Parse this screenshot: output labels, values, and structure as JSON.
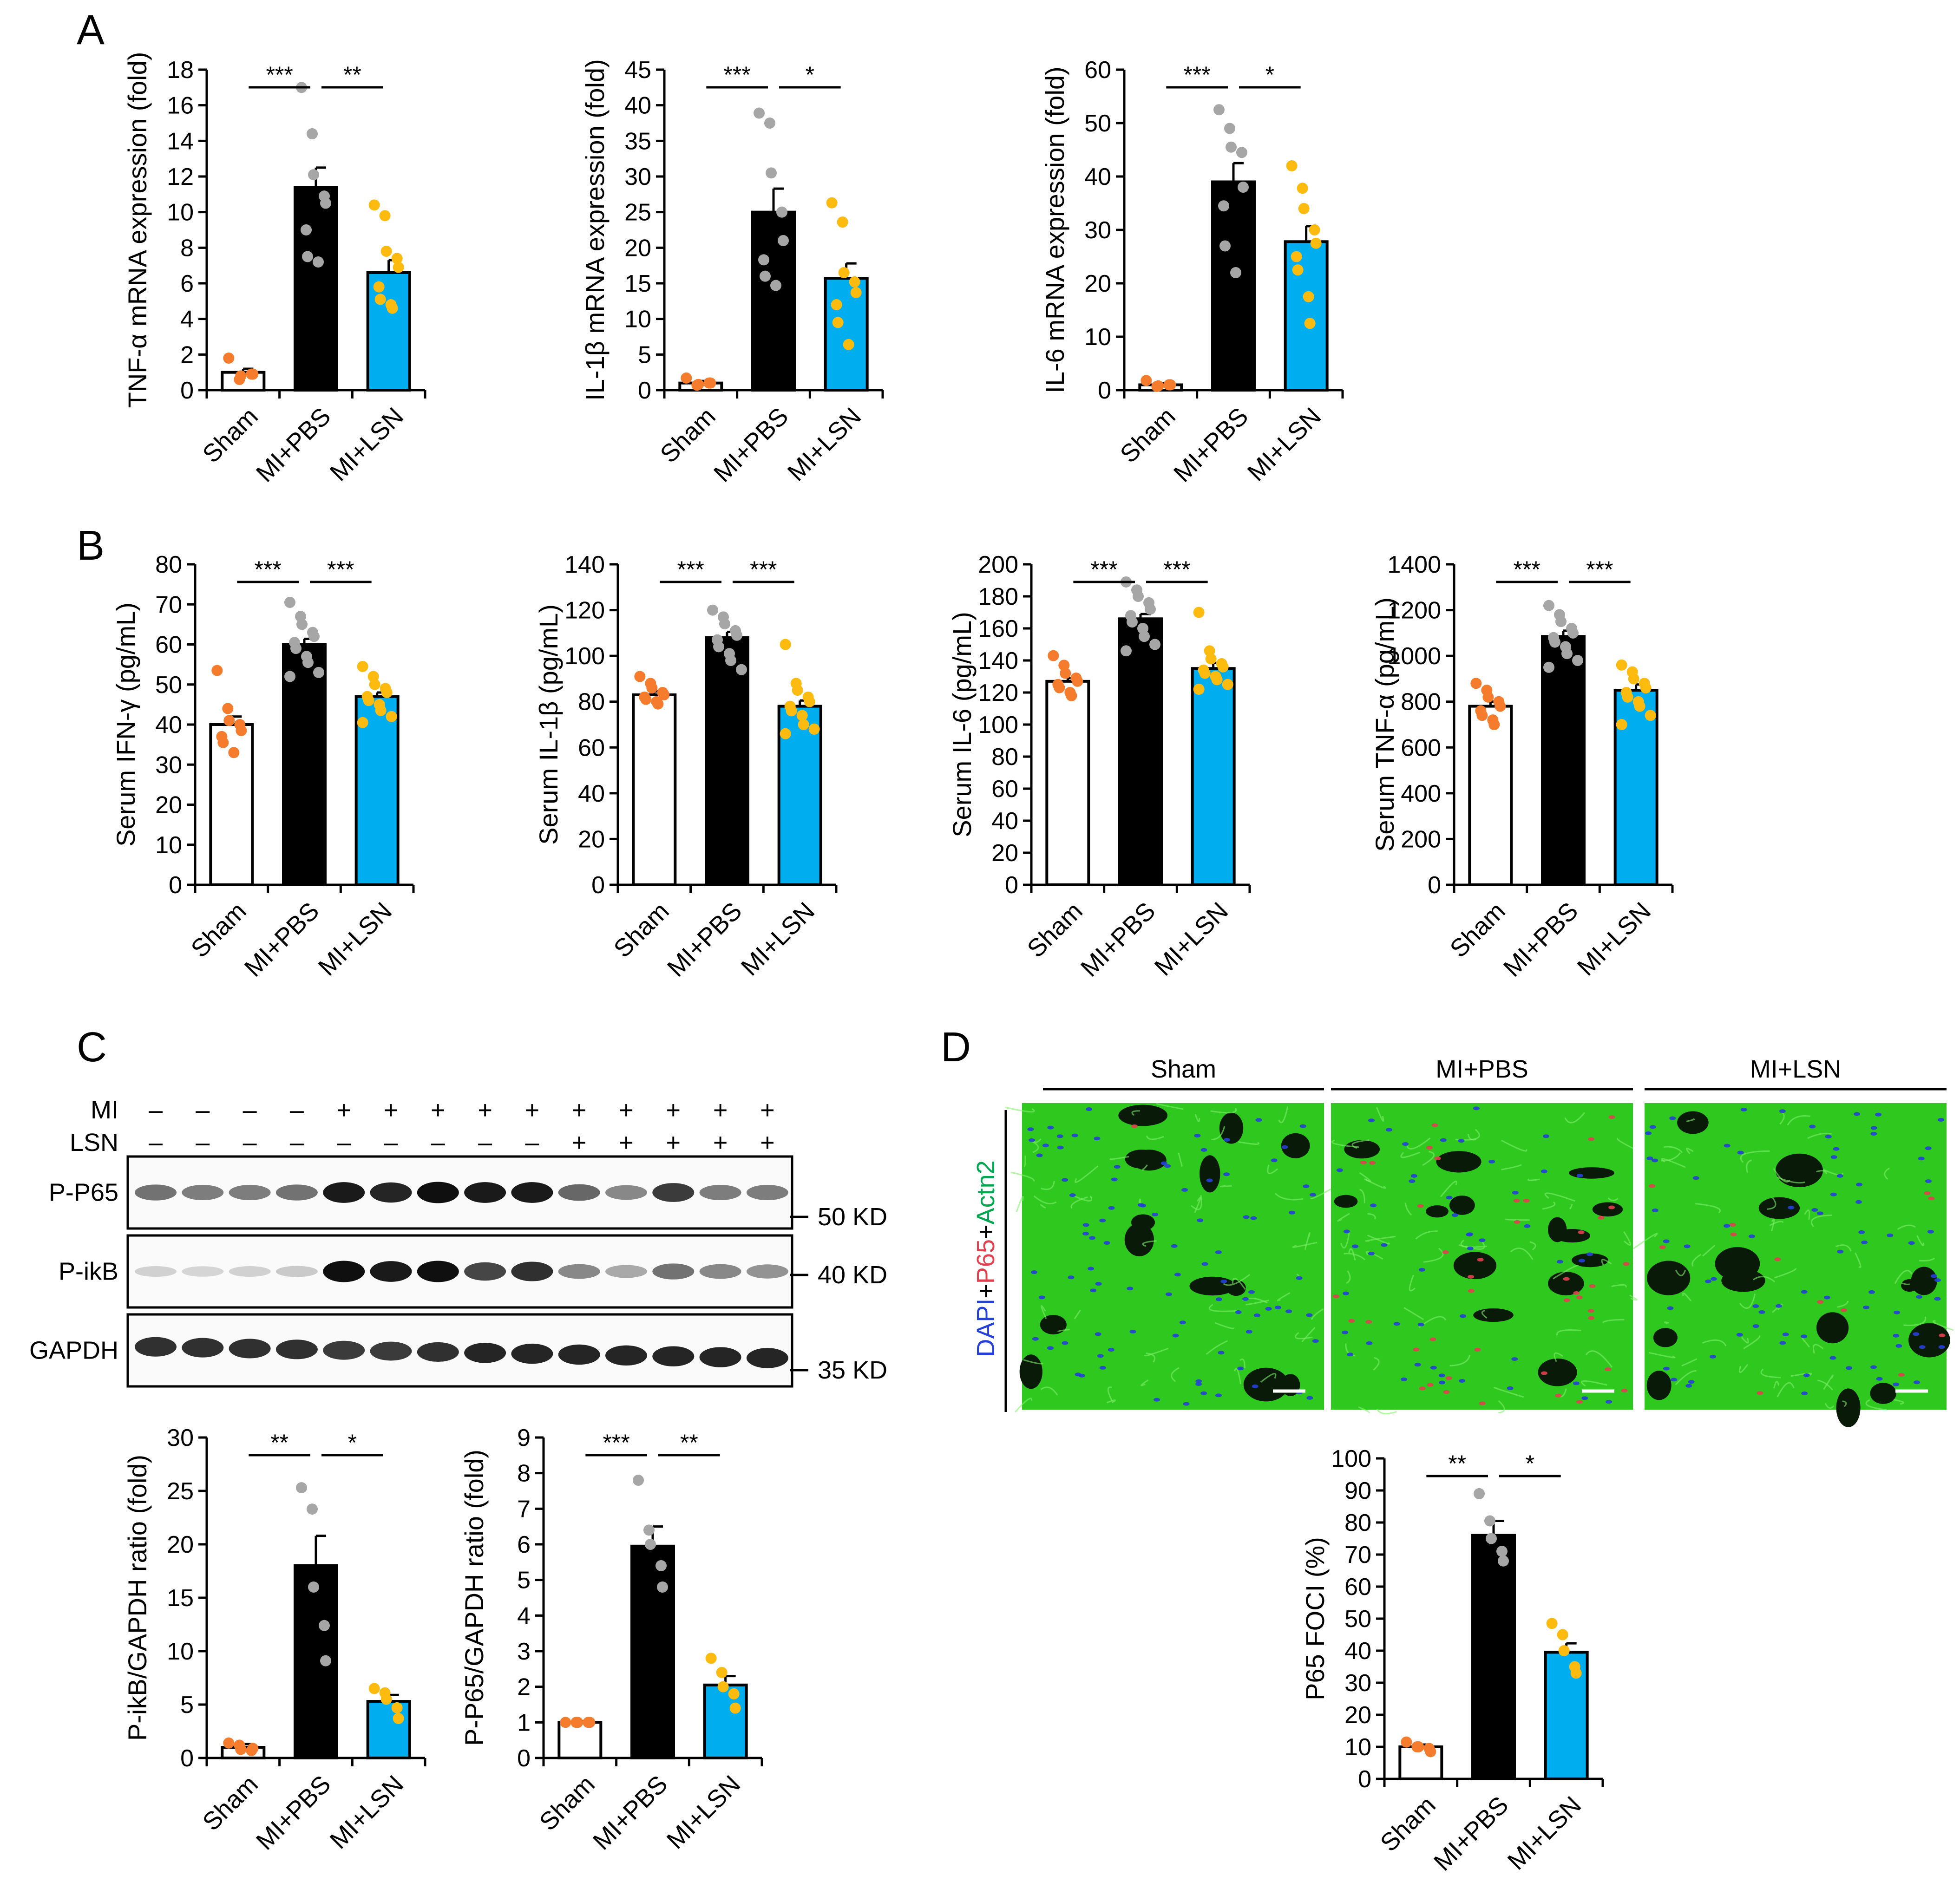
{
  "panel_labels": [
    "A",
    "B",
    "C",
    "D"
  ],
  "colors": {
    "sham": "#ffffff",
    "mi_pbs": "#000000",
    "mi_lsn": "#00aeef",
    "dot_sham": "#f47c2c",
    "dot_pbs": "#a6a6a6",
    "dot_lsn": "#fdbb0f",
    "tissue_green": "#2fc81e",
    "nuclei_blue": "#2540d8",
    "nuclei_red": "#e0404f"
  },
  "chart_data": [
    {
      "id": "a1",
      "type": "bar",
      "panel": "A",
      "categories": [
        "Sham",
        "MI+PBS",
        "MI+LSN"
      ],
      "values": [
        1.0,
        11.4,
        6.6
      ],
      "errors": [
        0.2,
        1.1,
        0.7
      ],
      "ylabel": "TNF-α mRNA expression (fold)",
      "ylim": [
        0,
        18
      ],
      "yticks": [
        0,
        2,
        4,
        6,
        8,
        10,
        12,
        14,
        16,
        18
      ],
      "points": [
        [
          1.8,
          0.6,
          0.8,
          0.9,
          0.9
        ],
        [
          17.0,
          14.4,
          12.1,
          10.9,
          10.5,
          9.0,
          7.5,
          7.2
        ],
        [
          10.4,
          9.8,
          7.8,
          7.4,
          6.9,
          5.8,
          5.1,
          4.8,
          4.6
        ]
      ],
      "significance": [
        {
          "from": 0,
          "to": 1,
          "label": "***"
        },
        {
          "from": 1,
          "to": 2,
          "label": "**"
        }
      ]
    },
    {
      "id": "a2",
      "type": "bar",
      "panel": "A",
      "categories": [
        "Sham",
        "MI+PBS",
        "MI+LSN"
      ],
      "values": [
        1.0,
        25.0,
        15.7
      ],
      "errors": [
        0.3,
        3.3,
        2.1
      ],
      "ylabel": "IL-1β mRNA expression (fold)",
      "ylim": [
        0,
        45
      ],
      "yticks": [
        0,
        5,
        10,
        15,
        20,
        25,
        30,
        35,
        40,
        45
      ],
      "points": [
        [
          1.7,
          0.7,
          0.8,
          1.0,
          1.0
        ],
        [
          38.9,
          37.5,
          30.5,
          25.0,
          21.0,
          18.3,
          16.0,
          14.7
        ],
        [
          26.3,
          23.6,
          16.5,
          15.2,
          13.7,
          12.0,
          9.5,
          6.4
        ]
      ],
      "significance": [
        {
          "from": 0,
          "to": 1,
          "label": "***"
        },
        {
          "from": 1,
          "to": 2,
          "label": "*"
        }
      ]
    },
    {
      "id": "a3",
      "type": "bar",
      "panel": "A",
      "categories": [
        "Sham",
        "MI+PBS",
        "MI+LSN"
      ],
      "values": [
        1.0,
        39.0,
        27.8
      ],
      "errors": [
        0.3,
        3.5,
        2.9
      ],
      "ylabel": "IL-6 mRNA expression (fold)",
      "ylim": [
        0,
        60
      ],
      "yticks": [
        0,
        10,
        20,
        30,
        40,
        50,
        60
      ],
      "points": [
        [
          1.8,
          0.7,
          0.8,
          1.0,
          1.0
        ],
        [
          52.5,
          49.0,
          45.5,
          44.5,
          38.0,
          34.5,
          27.0,
          22.0
        ],
        [
          42.0,
          37.8,
          34.0,
          30.0,
          27.5,
          25.0,
          22.5,
          17.5,
          12.5
        ]
      ],
      "significance": [
        {
          "from": 0,
          "to": 1,
          "label": "***"
        },
        {
          "from": 1,
          "to": 2,
          "label": "*"
        }
      ]
    },
    {
      "id": "b1",
      "type": "bar",
      "panel": "B",
      "categories": [
        "Sham",
        "MI+PBS",
        "MI+LSN"
      ],
      "values": [
        40.0,
        60.0,
        47.0
      ],
      "errors": [
        2.0,
        1.4,
        1.0
      ],
      "ylabel": "Serum IFN-γ (pg/mL)",
      "ylim": [
        0,
        80
      ],
      "yticks": [
        0,
        10,
        20,
        30,
        40,
        50,
        60,
        70,
        80
      ],
      "points": [
        [
          53.5,
          44.0,
          41.0,
          40.0,
          38.5,
          37.0,
          35.5,
          33.0
        ],
        [
          70.5,
          67.0,
          65.0,
          63.0,
          62.0,
          60.5,
          59.0,
          57.0,
          55.5,
          53.0,
          52.0
        ],
        [
          54.5,
          52.0,
          50.0,
          49.0,
          48.0,
          47.0,
          46.0,
          45.0,
          43.5,
          42.0,
          40.5
        ]
      ],
      "significance": [
        {
          "from": 0,
          "to": 1,
          "label": "***"
        },
        {
          "from": 1,
          "to": 2,
          "label": "***"
        }
      ]
    },
    {
      "id": "b2",
      "type": "bar",
      "panel": "B",
      "categories": [
        "Sham",
        "MI+PBS",
        "MI+LSN"
      ],
      "values": [
        83.0,
        108.0,
        78.0
      ],
      "errors": [
        1.5,
        2.5,
        2.5
      ],
      "ylabel": "Serum IL-1β (pg/mL)",
      "ylim": [
        0,
        140
      ],
      "yticks": [
        0,
        20,
        40,
        60,
        80,
        100,
        120,
        140
      ],
      "points": [
        [
          91.0,
          88.0,
          86.0,
          84.0,
          83.0,
          82.0,
          81.0,
          80.0,
          79.0
        ],
        [
          120.0,
          117.0,
          114.0,
          111.0,
          109.0,
          107.0,
          104.0,
          101.0,
          98.0,
          94.0
        ],
        [
          105.0,
          88.0,
          85.0,
          82.0,
          80.0,
          78.0,
          76.0,
          74.0,
          70.0,
          68.0,
          66.0
        ]
      ],
      "significance": [
        {
          "from": 0,
          "to": 1,
          "label": "***"
        },
        {
          "from": 1,
          "to": 2,
          "label": "***"
        }
      ]
    },
    {
      "id": "b3",
      "type": "bar",
      "panel": "B",
      "categories": [
        "Sham",
        "MI+PBS",
        "MI+LSN"
      ],
      "values": [
        127.0,
        166.0,
        135.0
      ],
      "errors": [
        2.0,
        3.0,
        3.5
      ],
      "ylabel": "Serum IL-6 (pg/mL)",
      "ylim": [
        0,
        200
      ],
      "yticks": [
        0,
        20,
        40,
        60,
        80,
        100,
        120,
        140,
        160,
        180,
        200
      ],
      "points": [
        [
          143.0,
          137.0,
          132.0,
          129.0,
          127.0,
          125.0,
          123.0,
          120.0,
          118.0
        ],
        [
          189.0,
          184.0,
          180.0,
          176.0,
          172.0,
          168.0,
          164.0,
          160.0,
          155.0,
          150.0,
          146.0
        ],
        [
          170.0,
          146.0,
          141.0,
          138.0,
          136.0,
          134.0,
          132.0,
          130.0,
          128.0,
          125.0,
          122.0
        ]
      ],
      "significance": [
        {
          "from": 0,
          "to": 1,
          "label": "***"
        },
        {
          "from": 1,
          "to": 2,
          "label": "***"
        }
      ]
    },
    {
      "id": "b4",
      "type": "bar",
      "panel": "B",
      "categories": [
        "Sham",
        "MI+PBS",
        "MI+LSN"
      ],
      "values": [
        780.0,
        1085.0,
        850.0
      ],
      "errors": [
        20.0,
        25.0,
        25.0
      ],
      "ylabel": "Serum TNF-α (pg/mL)",
      "ylim": [
        0,
        1400
      ],
      "yticks": [
        0,
        200,
        400,
        600,
        800,
        1000,
        1200,
        1400
      ],
      "points": [
        [
          880.0,
          850.0,
          820.0,
          800.0,
          780.0,
          760.0,
          740.0,
          720.0,
          700.0
        ],
        [
          1220.0,
          1180.0,
          1150.0,
          1120.0,
          1100.0,
          1080.0,
          1060.0,
          1040.0,
          1010.0,
          980.0,
          950.0
        ],
        [
          960.0,
          930.0,
          900.0,
          880.0,
          860.0,
          840.0,
          820.0,
          800.0,
          780.0,
          740.0,
          700.0
        ]
      ],
      "significance": [
        {
          "from": 0,
          "to": 1,
          "label": "***"
        },
        {
          "from": 1,
          "to": 2,
          "label": "***"
        }
      ]
    },
    {
      "id": "c1",
      "type": "bar",
      "panel": "C",
      "categories": [
        "Sham",
        "MI+PBS",
        "MI+LSN"
      ],
      "values": [
        1.0,
        18.0,
        5.3
      ],
      "errors": [
        0.3,
        2.8,
        0.6
      ],
      "ylabel": "P-ikB/GAPDH ratio (fold)",
      "ylim": [
        0,
        30
      ],
      "yticks": [
        0,
        5,
        10,
        15,
        20,
        25,
        30
      ],
      "points": [
        [
          1.4,
          1.2,
          0.8,
          0.7,
          0.9
        ],
        [
          25.3,
          23.3,
          16.0,
          12.4,
          9.1
        ],
        [
          6.5,
          6.1,
          5.5,
          4.7,
          3.7
        ]
      ],
      "significance": [
        {
          "from": 0,
          "to": 1,
          "label": "**"
        },
        {
          "from": 1,
          "to": 2,
          "label": "*"
        }
      ]
    },
    {
      "id": "c2",
      "type": "bar",
      "panel": "C",
      "categories": [
        "Sham",
        "MI+PBS",
        "MI+LSN"
      ],
      "values": [
        1.0,
        5.95,
        2.05
      ],
      "errors": [
        0.03,
        0.55,
        0.25
      ],
      "ylabel": "P-P65/GAPDH ratio (fold)",
      "ylim": [
        0,
        9
      ],
      "yticks": [
        0,
        1,
        2,
        3,
        4,
        5,
        6,
        7,
        8,
        9
      ],
      "points": [
        [
          1.0,
          1.0,
          1.0,
          1.0,
          1.0
        ],
        [
          7.8,
          6.4,
          6.0,
          5.4,
          4.8
        ],
        [
          2.8,
          2.4,
          2.0,
          1.8,
          1.4
        ]
      ],
      "significance": [
        {
          "from": 0,
          "to": 1,
          "label": "***"
        },
        {
          "from": 1,
          "to": 2,
          "label": "**"
        }
      ]
    },
    {
      "id": "d1",
      "type": "bar",
      "panel": "D",
      "categories": [
        "Sham",
        "MI+PBS",
        "MI+LSN"
      ],
      "values": [
        10.0,
        76.0,
        39.5
      ],
      "errors": [
        0.7,
        4.5,
        2.8
      ],
      "ylabel": "P65 FOCI (%)",
      "ylim": [
        0,
        100
      ],
      "yticks": [
        0,
        10,
        20,
        30,
        40,
        50,
        60,
        70,
        80,
        90,
        100
      ],
      "points": [
        [
          11.5,
          10.0,
          10.0,
          9.5,
          8.5
        ],
        [
          89.0,
          80.5,
          75.0,
          71.0,
          68.0
        ],
        [
          48.5,
          45.0,
          40.0,
          35.0,
          33.0
        ]
      ],
      "significance": [
        {
          "from": 0,
          "to": 1,
          "label": "**"
        },
        {
          "from": 1,
          "to": 2,
          "label": "*"
        }
      ]
    }
  ],
  "western_blot": {
    "row_labels": [
      "MI",
      "LSN"
    ],
    "mi_signs": [
      "–",
      "–",
      "–",
      "–",
      "+",
      "+",
      "+",
      "+",
      "+",
      "+",
      "+",
      "+",
      "+",
      "+"
    ],
    "lsn_signs": [
      "–",
      "–",
      "–",
      "–",
      "–",
      "–",
      "–",
      "–",
      "–",
      "+",
      "+",
      "+",
      "+",
      "+"
    ],
    "bands": [
      {
        "label": "P-P65",
        "marker": "50 KD",
        "intensity": [
          0.55,
          0.5,
          0.5,
          0.55,
          0.95,
          0.9,
          1.0,
          0.95,
          0.95,
          0.6,
          0.45,
          0.8,
          0.5,
          0.5
        ]
      },
      {
        "label": "P-ikB",
        "marker": "40 KD",
        "intensity": [
          0.12,
          0.1,
          0.12,
          0.15,
          1.0,
          0.95,
          1.0,
          0.75,
          0.85,
          0.45,
          0.3,
          0.55,
          0.45,
          0.4
        ]
      },
      {
        "label": "GAPDH",
        "marker": "35 KD",
        "intensity": [
          0.85,
          0.85,
          0.85,
          0.85,
          0.8,
          0.8,
          0.85,
          0.9,
          0.9,
          0.9,
          0.9,
          0.9,
          0.9,
          0.9
        ]
      }
    ]
  },
  "microscopy": {
    "groups": [
      "Sham",
      "MI+PBS",
      "MI+LSN"
    ],
    "stain_parts": [
      "DAPI",
      "+",
      "P65",
      "+",
      "Actn2"
    ],
    "red_density": [
      0.02,
      0.45,
      0.12
    ]
  }
}
